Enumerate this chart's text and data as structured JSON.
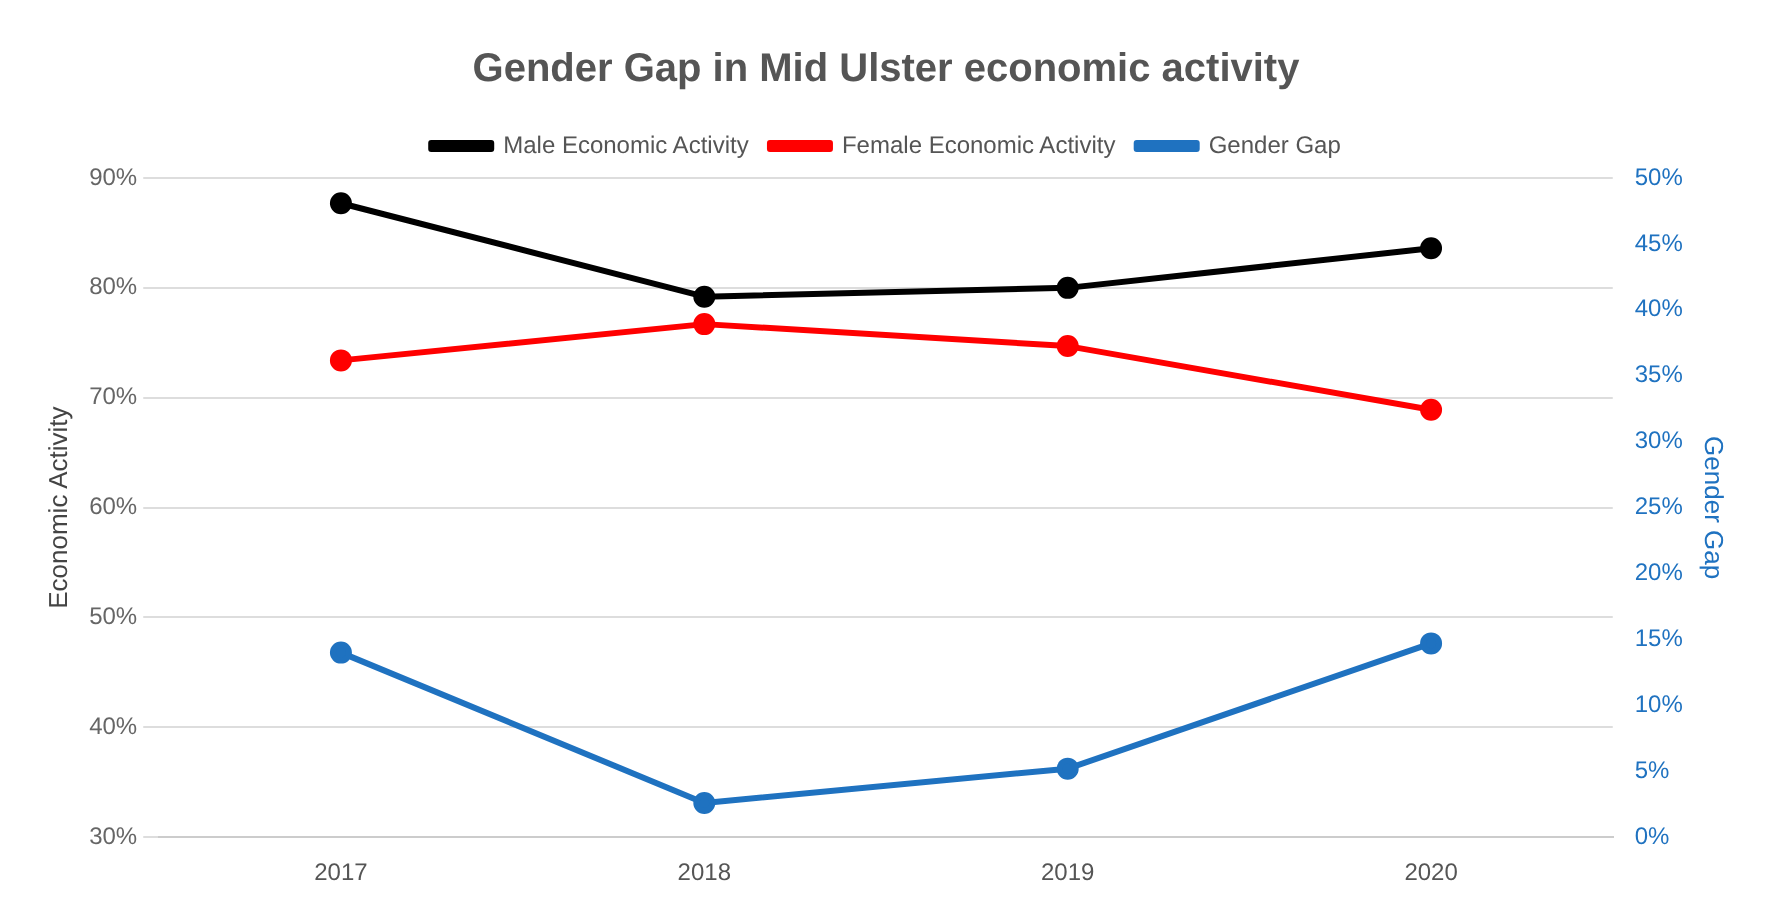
{
  "chart_data": {
    "type": "line",
    "title": "Gender Gap in Mid Ulster economic activity",
    "ylabel": "Economic Activity",
    "y2label": "Gender Gap",
    "categories": [
      "2017",
      "2018",
      "2019",
      "2020"
    ],
    "series": [
      {
        "name": "Male Economic Activity",
        "color": "#000000",
        "values": [
          87.7,
          79.2,
          80.0,
          83.6
        ]
      },
      {
        "name": "Female Economic Activity",
        "color": "#ff0000",
        "values": [
          73.4,
          76.7,
          74.7,
          68.9
        ]
      },
      {
        "name": "Gender Gap",
        "color": "#1f72c0",
        "axis": "y2",
        "values": [
          14.0,
          2.6,
          5.2,
          14.7
        ]
      }
    ],
    "ylim": [
      30,
      90
    ],
    "yticks": [
      {
        "value": 30,
        "label": "30%"
      },
      {
        "value": 40,
        "label": "40%"
      },
      {
        "value": 50,
        "label": "50%"
      },
      {
        "value": 60,
        "label": "60%"
      },
      {
        "value": 70,
        "label": "70%"
      },
      {
        "value": 80,
        "label": "80%"
      },
      {
        "value": 90,
        "label": "90%"
      }
    ],
    "y2lim": [
      0,
      50
    ],
    "y2ticks": [
      {
        "value": 0,
        "label": "0%"
      },
      {
        "value": 5,
        "label": "5%"
      },
      {
        "value": 10,
        "label": "10%"
      },
      {
        "value": 15,
        "label": "15%"
      },
      {
        "value": 20,
        "label": "20%"
      },
      {
        "value": 25,
        "label": "25%"
      },
      {
        "value": 30,
        "label": "30%"
      },
      {
        "value": 35,
        "label": "35%"
      },
      {
        "value": 40,
        "label": "40%"
      },
      {
        "value": 45,
        "label": "45%"
      },
      {
        "value": 50,
        "label": "50%"
      }
    ],
    "grid": "y",
    "legend": "top",
    "marker": "circle",
    "line_style": "solid"
  }
}
